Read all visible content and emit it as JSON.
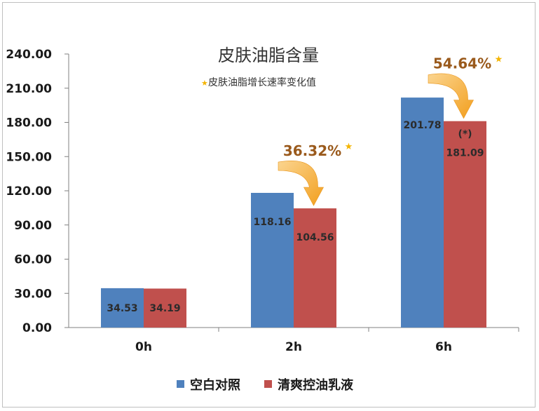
{
  "chart_data": {
    "type": "bar",
    "title": "皮肤油脂含量",
    "subtitle": "皮肤油脂增长速率变化值",
    "categories": [
      "0h",
      "2h",
      "6h"
    ],
    "ylim": [
      0,
      240
    ],
    "yticks": [
      "0.00",
      "30.00",
      "60.00",
      "90.00",
      "120.00",
      "150.00",
      "180.00",
      "210.00",
      "240.00"
    ],
    "series": [
      {
        "name": "空白对照",
        "values": [
          34.53,
          118.16,
          201.78
        ],
        "labels": [
          "34.53",
          "118.16",
          "201.78"
        ],
        "color": "#4f81bd"
      },
      {
        "name": "清爽控油乳液",
        "values": [
          34.19,
          104.56,
          181.09
        ],
        "labels": [
          "34.19",
          "104.56",
          "181.09"
        ],
        "color": "#c0504d"
      }
    ],
    "annotations": [
      {
        "category": "2h",
        "text": "36.32%",
        "star": "*"
      },
      {
        "category": "6h",
        "text": "54.64%",
        "star": "*"
      }
    ],
    "significance_marker": {
      "category": "6h",
      "text": "(*)"
    },
    "legend_position": "bottom",
    "grid": false
  },
  "colors": {
    "arrow": "#f4a020",
    "pct_text": "#9a5a1c",
    "star": "#f4b400"
  }
}
